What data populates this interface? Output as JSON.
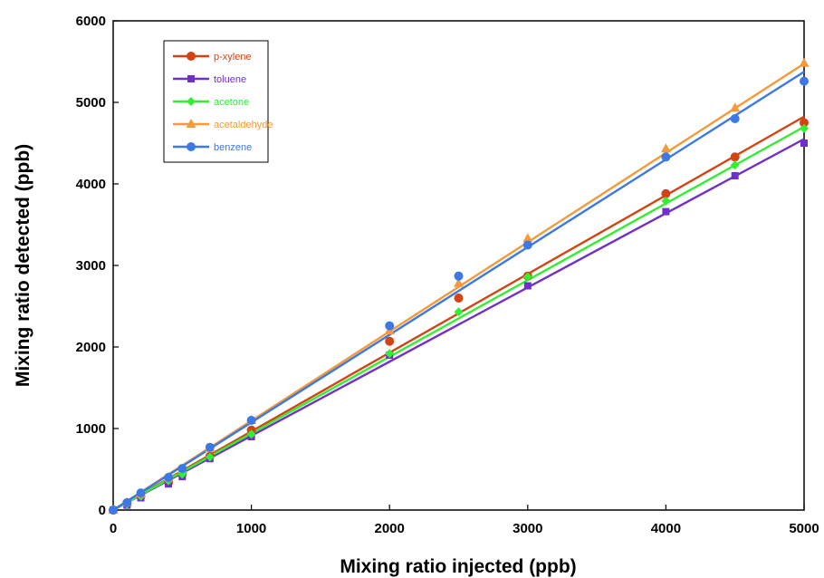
{
  "chart_data": {
    "type": "scatter",
    "title": "",
    "xlabel": "Mixing ratio injected (ppb)",
    "ylabel": "Mixing ratio detected (ppb)",
    "xlim": [
      0,
      5000
    ],
    "ylim": [
      0,
      6000
    ],
    "xticks": [
      "0",
      "1000",
      "2000",
      "3000",
      "4000",
      "5000"
    ],
    "yticks": [
      "0",
      "1000",
      "2000",
      "3000",
      "4000",
      "5000",
      "6000"
    ],
    "grid": false,
    "legend_position": "top-left",
    "series": [
      {
        "name": "p-xylene",
        "color": "#D24414",
        "marker": "circle",
        "fit_slope": 0.965,
        "x": [
          0,
          100,
          200,
          400,
          500,
          700,
          1000,
          2000,
          2500,
          3000,
          4000,
          4500,
          5000
        ],
        "y": [
          0,
          70,
          170,
          340,
          440,
          660,
          980,
          2070,
          2600,
          2870,
          3880,
          4330,
          4750
        ]
      },
      {
        "name": "toluene",
        "color": "#7030C8",
        "marker": "square",
        "fit_slope": 0.91,
        "x": [
          0,
          100,
          200,
          400,
          500,
          700,
          1000,
          2000,
          3000,
          4000,
          4500,
          5000
        ],
        "y": [
          0,
          60,
          150,
          320,
          410,
          630,
          900,
          1900,
          2750,
          3660,
          4100,
          4500
        ]
      },
      {
        "name": "acetone",
        "color": "#33EE33",
        "marker": "diamond",
        "fit_slope": 0.94,
        "x": [
          0,
          100,
          200,
          400,
          500,
          700,
          1000,
          2000,
          2500,
          3000,
          4000,
          4500,
          5000
        ],
        "y": [
          0,
          70,
          170,
          360,
          440,
          650,
          930,
          1920,
          2430,
          2860,
          3790,
          4230,
          4680
        ]
      },
      {
        "name": "acetaldehyde",
        "color": "#F59A3A",
        "marker": "triangle",
        "fit_slope": 1.095,
        "x": [
          0,
          100,
          200,
          400,
          500,
          700,
          1000,
          2000,
          2500,
          3000,
          4000,
          4500,
          5000
        ],
        "y": [
          0,
          90,
          200,
          400,
          500,
          760,
          1100,
          2200,
          2780,
          3330,
          4430,
          4930,
          5480
        ]
      },
      {
        "name": "benzene",
        "color": "#3C78E6",
        "marker": "circle",
        "fit_slope": 1.075,
        "x": [
          0,
          100,
          200,
          400,
          500,
          700,
          1000,
          2000,
          2500,
          3000,
          4000,
          4500,
          5000
        ],
        "y": [
          0,
          90,
          210,
          400,
          510,
          770,
          1100,
          2260,
          2870,
          3250,
          4330,
          4800,
          5260
        ]
      }
    ]
  }
}
